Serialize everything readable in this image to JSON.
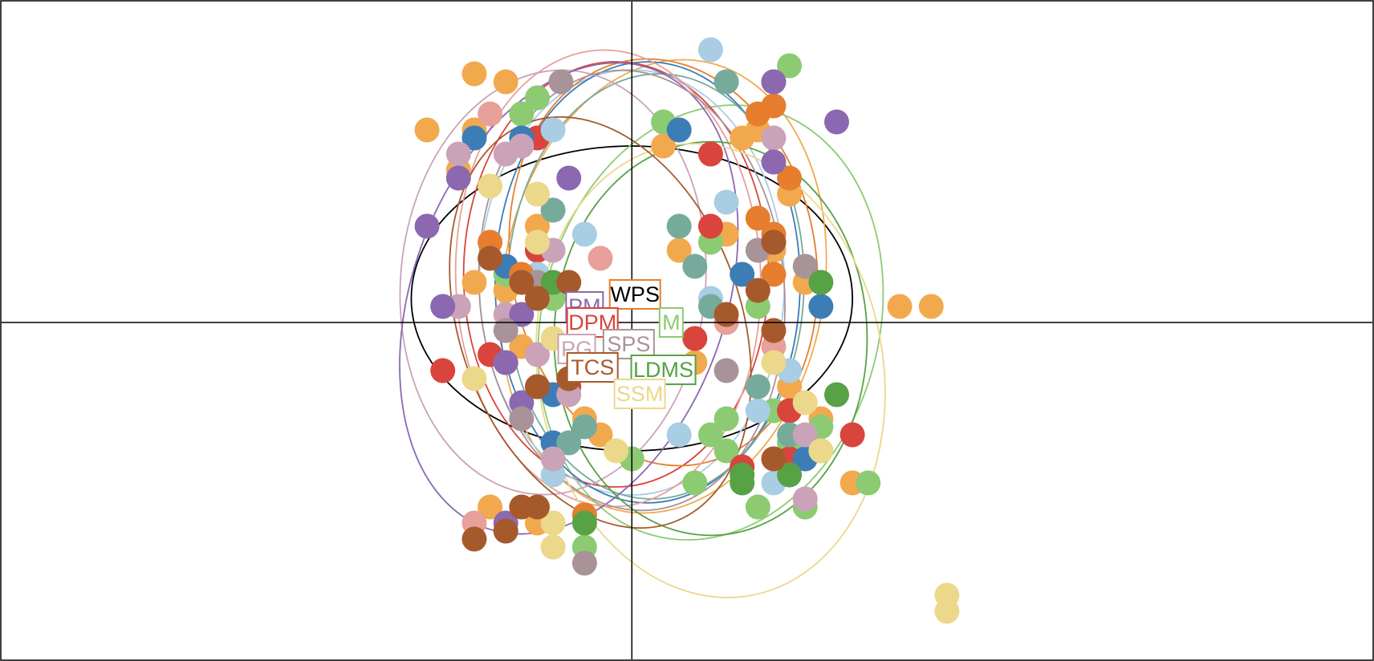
{
  "chart_data": {
    "type": "scatter",
    "title": "",
    "xlabel": "",
    "ylabel": "",
    "xlim": [
      -4.0,
      4.7
    ],
    "ylim": [
      -4.2,
      4.0
    ],
    "grid": false,
    "axes_lines": "x=0 and y=0",
    "series": [
      {
        "key": "wps",
        "name": "WPS",
        "color": "#ffffff",
        "ellipse_color": "#000000",
        "center": [
          0.0,
          0.3
        ],
        "ellipse": {
          "rx": 1.4,
          "ry": 1.9,
          "rot": 0
        },
        "points": []
      },
      {
        "key": "orange",
        "name": "",
        "color": "#f2a94e",
        "ellipse_color": "#f2a94e",
        "center": [
          0.2,
          0.45
        ],
        "ellipse": {
          "rx": 1.45,
          "ry": 2.0,
          "rot": -80
        },
        "points": [
          [
            -1.0,
            3.1
          ],
          [
            -0.8,
            3.0
          ],
          [
            -1.3,
            2.4
          ],
          [
            -1.0,
            2.4
          ],
          [
            0.2,
            2.2
          ],
          [
            0.7,
            2.3
          ],
          [
            -0.6,
            1.2
          ],
          [
            0.6,
            1.1
          ],
          [
            0.3,
            0.9
          ],
          [
            -1.0,
            0.5
          ],
          [
            -0.8,
            0.4
          ],
          [
            0.9,
            0.9
          ],
          [
            1.1,
            0.5
          ],
          [
            -0.7,
            -0.3
          ],
          [
            -0.4,
            -0.7
          ],
          [
            0.4,
            -0.5
          ],
          [
            -0.3,
            -1.2
          ],
          [
            -0.2,
            -1.4
          ],
          [
            1.0,
            -0.8
          ],
          [
            1.2,
            -1.2
          ],
          [
            1.4,
            -2.0
          ],
          [
            -0.9,
            -2.3
          ],
          [
            -0.6,
            -2.5
          ],
          [
            1.7,
            0.2
          ],
          [
            1.9,
            0.2
          ],
          [
            0.8,
            2.4
          ],
          [
            -1.1,
            1.9
          ],
          [
            1.0,
            1.6
          ]
        ]
      },
      {
        "key": "green",
        "name": "",
        "color": "#8ccb72",
        "ellipse_color": "#8ccb72",
        "center": [
          0.5,
          0.0
        ],
        "ellipse": {
          "rx": 1.4,
          "ry": 2.1,
          "rot": -75
        },
        "points": [
          [
            -0.6,
            2.8
          ],
          [
            -0.7,
            2.6
          ],
          [
            0.2,
            2.5
          ],
          [
            1.0,
            3.2
          ],
          [
            0.5,
            1.0
          ],
          [
            -0.5,
            0.3
          ],
          [
            0.0,
            -1.7
          ],
          [
            0.6,
            -1.2
          ],
          [
            0.5,
            -1.4
          ],
          [
            0.6,
            -1.6
          ],
          [
            0.9,
            -1.1
          ],
          [
            1.0,
            -1.5
          ],
          [
            1.2,
            -1.3
          ],
          [
            1.2,
            -1.6
          ],
          [
            0.4,
            -2.0
          ],
          [
            0.8,
            -2.3
          ],
          [
            -0.3,
            -2.8
          ],
          [
            1.1,
            -2.3
          ],
          [
            1.5,
            -2.0
          ],
          [
            -0.8,
            0.6
          ],
          [
            0.8,
            0.2
          ]
        ]
      },
      {
        "key": "red",
        "name": "DPM",
        "color": "#d9443c",
        "ellipse_color": "#d9443c",
        "center": [
          -0.1,
          0.6
        ],
        "ellipse": {
          "rx": 1.35,
          "ry": 1.9,
          "rot": -90
        },
        "points": [
          [
            -0.6,
            2.3
          ],
          [
            0.5,
            2.1
          ],
          [
            0.9,
            3.0
          ],
          [
            0.5,
            1.2
          ],
          [
            -0.6,
            0.9
          ],
          [
            0.4,
            -0.2
          ],
          [
            -1.2,
            -0.6
          ],
          [
            -0.4,
            -0.8
          ],
          [
            1.0,
            -1.1
          ],
          [
            1.4,
            -1.4
          ],
          [
            1.0,
            -1.7
          ],
          [
            -0.9,
            -0.4
          ],
          [
            0.7,
            -1.8
          ]
        ]
      },
      {
        "key": "lightblue",
        "name": "",
        "color": "#a9cde3",
        "ellipse_color": "#a9cde3",
        "center": [
          0.0,
          0.5
        ],
        "ellipse": {
          "rx": 1.35,
          "ry": 1.9,
          "rot": -90
        },
        "points": [
          [
            0.5,
            3.4
          ],
          [
            -0.5,
            2.4
          ],
          [
            -0.3,
            1.1
          ],
          [
            -0.6,
            0.6
          ],
          [
            0.6,
            1.5
          ],
          [
            0.5,
            0.3
          ],
          [
            -0.6,
            -0.8
          ],
          [
            0.3,
            -1.4
          ],
          [
            1.0,
            -0.6
          ],
          [
            0.8,
            -1.1
          ],
          [
            0.9,
            -2.0
          ],
          [
            -0.5,
            -1.9
          ]
        ]
      },
      {
        "key": "darkblue",
        "name": "",
        "color": "#3c7db6",
        "ellipse_color": "#3c7db6",
        "center": [
          0.1,
          0.5
        ],
        "ellipse": {
          "rx": 1.4,
          "ry": 1.9,
          "rot": -90
        },
        "points": [
          [
            -1.0,
            2.3
          ],
          [
            -0.7,
            2.3
          ],
          [
            0.3,
            2.4
          ],
          [
            0.7,
            0.6
          ],
          [
            -0.5,
            -0.9
          ],
          [
            -0.5,
            -1.5
          ],
          [
            1.1,
            -1.7
          ],
          [
            1.2,
            0.2
          ],
          [
            -0.8,
            0.7
          ]
        ]
      },
      {
        "key": "teal",
        "name": "",
        "color": "#76ab9c",
        "ellipse_color": "#76ab9c",
        "center": [
          0.15,
          0.45
        ],
        "ellipse": {
          "rx": 1.35,
          "ry": 1.85,
          "rot": -88
        },
        "points": [
          [
            0.6,
            3.0
          ],
          [
            0.3,
            1.2
          ],
          [
            0.4,
            0.7
          ],
          [
            -0.5,
            1.4
          ],
          [
            -0.4,
            -1.5
          ],
          [
            -0.3,
            -1.3
          ],
          [
            0.8,
            -0.8
          ],
          [
            1.0,
            -1.4
          ],
          [
            -0.3,
            -2.4
          ],
          [
            0.5,
            0.2
          ]
        ]
      },
      {
        "key": "darkorange",
        "name": "",
        "color": "#e67e2d",
        "ellipse_color": "#e67e2d",
        "center": [
          0.2,
          0.75
        ],
        "ellipse": {
          "rx": 1.3,
          "ry": 1.9,
          "rot": -100
        },
        "points": [
          [
            0.9,
            2.7
          ],
          [
            0.8,
            2.6
          ],
          [
            -0.9,
            1.0
          ],
          [
            -0.7,
            0.6
          ],
          [
            0.8,
            1.3
          ],
          [
            0.9,
            1.1
          ],
          [
            -0.3,
            -2.4
          ],
          [
            0.9,
            0.6
          ],
          [
            1.0,
            1.8
          ]
        ]
      },
      {
        "key": "pink",
        "name": "",
        "color": "#e8a09a",
        "ellipse_color": "#e8a09a",
        "center": [
          -0.15,
          0.55
        ],
        "ellipse": {
          "rx": 1.45,
          "ry": 1.9,
          "rot": -92
        },
        "points": [
          [
            -0.9,
            2.6
          ],
          [
            -0.2,
            0.8
          ],
          [
            0.6,
            0.0
          ],
          [
            0.9,
            -0.3
          ],
          [
            -1.0,
            -2.5
          ],
          [
            -0.8,
            -0.5
          ]
        ]
      },
      {
        "key": "rose",
        "name": "PG",
        "color": "#caa3b8",
        "ellipse_color": "#caa3b8",
        "center": [
          -0.5,
          0.5
        ],
        "ellipse": {
          "rx": 1.35,
          "ry": 1.9,
          "rot": -85
        },
        "points": [
          [
            -1.1,
            2.1
          ],
          [
            -0.8,
            2.1
          ],
          [
            -0.7,
            2.2
          ],
          [
            -0.5,
            0.9
          ],
          [
            -0.8,
            0.1
          ],
          [
            -1.1,
            0.2
          ],
          [
            -0.6,
            -0.4
          ],
          [
            -0.4,
            -0.9
          ],
          [
            -0.5,
            -1.7
          ],
          [
            1.1,
            -1.4
          ],
          [
            1.1,
            -2.2
          ],
          [
            0.9,
            2.3
          ]
        ]
      },
      {
        "key": "purple",
        "name": "PM",
        "color": "#8b68b0",
        "ellipse_color": "#8b68b0",
        "center": [
          -0.4,
          0.3
        ],
        "ellipse": {
          "rx": 1.55,
          "ry": 1.95,
          "rot": -70
        },
        "points": [
          [
            -1.1,
            1.8
          ],
          [
            -1.3,
            1.2
          ],
          [
            -1.2,
            0.2
          ],
          [
            -0.7,
            0.1
          ],
          [
            -0.8,
            -0.5
          ],
          [
            -0.7,
            -1.0
          ],
          [
            -0.8,
            -2.6
          ],
          [
            -0.8,
            -2.5
          ],
          [
            0.9,
            3.0
          ],
          [
            1.3,
            2.5
          ],
          [
            0.9,
            2.0
          ],
          [
            0.9,
            1.0
          ],
          [
            -0.4,
            1.8
          ]
        ]
      },
      {
        "key": "mauve",
        "name": "SPS",
        "color": "#a89398",
        "ellipse_color": "#a89398",
        "center": [
          0.0,
          0.4
        ],
        "ellipse": {
          "rx": 1.4,
          "ry": 1.9,
          "rot": -95
        },
        "points": [
          [
            -0.45,
            3.0
          ],
          [
            -0.8,
            -0.1
          ],
          [
            -0.7,
            -1.2
          ],
          [
            -0.3,
            -3.0
          ],
          [
            0.8,
            0.9
          ],
          [
            1.1,
            0.7
          ],
          [
            0.6,
            -0.6
          ],
          [
            -0.6,
            0.5
          ]
        ]
      },
      {
        "key": "darkgreen",
        "name": "LDMS",
        "color": "#56a245",
        "ellipse_color": "#56a245",
        "center": [
          0.5,
          -0.2
        ],
        "ellipse": {
          "rx": 1.25,
          "ry": 1.95,
          "rot": -90
        },
        "points": [
          [
            1.2,
            0.5
          ],
          [
            1.3,
            -0.9
          ],
          [
            0.7,
            -2.0
          ],
          [
            1.0,
            -1.9
          ],
          [
            -0.5,
            0.5
          ],
          [
            -0.3,
            -2.5
          ],
          [
            0.7,
            -1.9
          ]
        ]
      },
      {
        "key": "yellow",
        "name": "SSM",
        "color": "#ebd88a",
        "ellipse_color": "#ebd88a",
        "center": [
          0.5,
          -0.6
        ],
        "ellipse": {
          "rx": 1.45,
          "ry": 2.15,
          "rot": -100
        },
        "points": [
          [
            -0.9,
            1.7
          ],
          [
            -0.6,
            1.0
          ],
          [
            -0.5,
            -0.2
          ],
          [
            -1.0,
            -0.7
          ],
          [
            -0.1,
            -1.6
          ],
          [
            -0.5,
            -2.5
          ],
          [
            1.1,
            -1.0
          ],
          [
            1.2,
            -1.6
          ],
          [
            2.0,
            -3.4
          ],
          [
            2.0,
            -3.6
          ],
          [
            0.9,
            -0.5
          ],
          [
            -0.5,
            -2.8
          ],
          [
            -0.6,
            1.6
          ]
        ]
      },
      {
        "key": "brown",
        "name": "TCS",
        "color": "#a65a2c",
        "ellipse_color": "#a65a2c",
        "center": [
          -0.2,
          0.0
        ],
        "ellipse": {
          "rx": 1.35,
          "ry": 1.75,
          "rot": -110
        },
        "points": [
          [
            -0.9,
            0.8
          ],
          [
            -0.7,
            0.5
          ],
          [
            -0.6,
            0.3
          ],
          [
            -0.4,
            0.5
          ],
          [
            -0.6,
            -0.8
          ],
          [
            -0.4,
            -0.7
          ],
          [
            -0.7,
            -2.3
          ],
          [
            -0.6,
            -2.3
          ],
          [
            -0.8,
            -2.6
          ],
          [
            -1.0,
            -2.7
          ],
          [
            0.6,
            0.1
          ],
          [
            0.8,
            0.4
          ],
          [
            0.9,
            -0.1
          ],
          [
            0.9,
            -1.7
          ],
          [
            0.9,
            1.0
          ]
        ]
      }
    ],
    "labels": [
      {
        "text": "WPS",
        "series": "wps",
        "x": 0.02,
        "y": 0.35,
        "text_color": "#000000",
        "border": "#e67e2d",
        "fill": "#ffffff"
      },
      {
        "text": "PM",
        "series": "purple",
        "x": -0.3,
        "y": 0.2,
        "text_color": "#8b68b0",
        "border": "#8b68b0",
        "fill": "#ffffff"
      },
      {
        "text": "DPM",
        "series": "red",
        "x": -0.25,
        "y": 0.0,
        "text_color": "#d9443c",
        "border": "#d9443c",
        "fill": "#ffffff"
      },
      {
        "text": "PG",
        "series": "rose",
        "x": -0.35,
        "y": -0.33,
        "text_color": "#caa3b8",
        "border": "#caa3b8",
        "fill": "#ffffff"
      },
      {
        "text": "SPS",
        "series": "mauve",
        "x": -0.02,
        "y": -0.27,
        "text_color": "#a89398",
        "border": "#a89398",
        "fill": "#ffffff"
      },
      {
        "text": "TCS",
        "series": "brown",
        "x": -0.25,
        "y": -0.56,
        "text_color": "#a65a2c",
        "border": "#a65a2c",
        "fill": "#ffffff"
      },
      {
        "text": "LDMS",
        "series": "darkgreen",
        "x": 0.2,
        "y": -0.59,
        "text_color": "#56a245",
        "border": "#56a245",
        "fill": "#ffffff"
      },
      {
        "text": "SSM",
        "series": "yellow",
        "x": 0.05,
        "y": -0.89,
        "text_color": "#ebd88a",
        "border": "#ebd88a",
        "fill": "#ffffff"
      },
      {
        "text": "M",
        "series": "green",
        "x": 0.25,
        "y": 0.0,
        "text_color": "#8ccb72",
        "border": "#8ccb72",
        "fill": "#ffffff"
      }
    ]
  }
}
